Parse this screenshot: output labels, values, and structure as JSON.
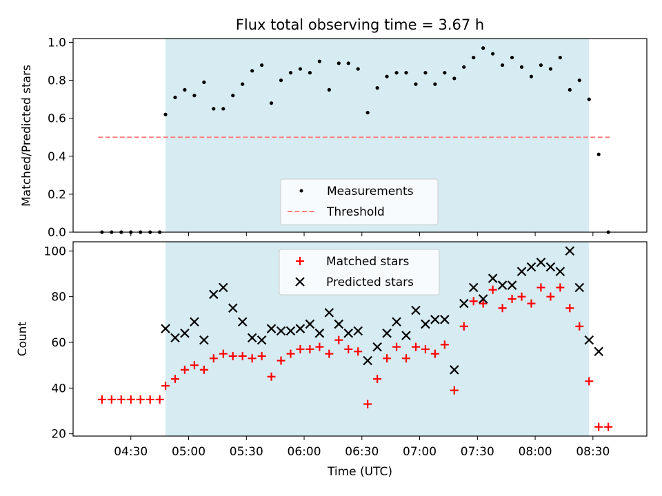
{
  "chart_data": [
    {
      "type": "scatter",
      "title": "Flux total observing time = 3.67 h",
      "xlabel": "",
      "ylabel": "Matched/Predicted stars",
      "ylim": [
        0,
        1.02
      ],
      "xlim": [
        "04:00",
        "08:58"
      ],
      "yticks": [
        "0.0",
        "0.2",
        "0.4",
        "0.6",
        "0.8",
        "1.0"
      ],
      "shaded_interval": [
        "04:48",
        "08:28"
      ],
      "shade_color": "#add8e6",
      "legend_position": "lower center",
      "series": [
        {
          "name": "Measurements",
          "marker": "dot",
          "color": "#000000",
          "x": [
            "04:15",
            "04:20",
            "04:25",
            "04:30",
            "04:35",
            "04:40",
            "04:45",
            "04:48",
            "04:53",
            "04:58",
            "05:03",
            "05:08",
            "05:13",
            "05:18",
            "05:23",
            "05:28",
            "05:33",
            "05:38",
            "05:43",
            "05:48",
            "05:53",
            "05:58",
            "06:03",
            "06:08",
            "06:13",
            "06:18",
            "06:23",
            "06:28",
            "06:33",
            "06:38",
            "06:43",
            "06:48",
            "06:53",
            "06:58",
            "07:03",
            "07:08",
            "07:13",
            "07:18",
            "07:23",
            "07:28",
            "07:33",
            "07:38",
            "07:43",
            "07:48",
            "07:53",
            "07:58",
            "08:03",
            "08:08",
            "08:13",
            "08:18",
            "08:23",
            "08:28",
            "08:33",
            "08:38"
          ],
          "values": [
            0,
            0,
            0,
            0,
            0,
            0,
            0,
            0.62,
            0.71,
            0.75,
            0.72,
            0.79,
            0.65,
            0.65,
            0.72,
            0.78,
            0.85,
            0.88,
            0.68,
            0.8,
            0.84,
            0.86,
            0.84,
            0.9,
            0.75,
            0.89,
            0.89,
            0.86,
            0.63,
            0.76,
            0.82,
            0.84,
            0.84,
            0.78,
            0.84,
            0.78,
            0.84,
            0.81,
            0.87,
            0.92,
            0.97,
            0.94,
            0.88,
            0.92,
            0.87,
            0.82,
            0.88,
            0.86,
            0.92,
            0.75,
            0.8,
            0.7,
            0.41,
            0
          ]
        },
        {
          "name": "Threshold",
          "style": "dashed",
          "color": "#ff8080",
          "x": [
            "04:13",
            "08:40"
          ],
          "values": [
            0.5,
            0.5
          ]
        }
      ]
    },
    {
      "type": "scatter",
      "title": "",
      "xlabel": "Time (UTC)",
      "ylabel": "Count",
      "ylim": [
        19,
        104
      ],
      "xlim": [
        "04:00",
        "08:58"
      ],
      "xticks": [
        "04:30",
        "05:00",
        "05:30",
        "06:00",
        "06:30",
        "07:00",
        "07:30",
        "08:00",
        "08:30"
      ],
      "yticks": [
        "20",
        "40",
        "60",
        "80",
        "100"
      ],
      "shaded_interval": [
        "04:48",
        "08:28"
      ],
      "shade_color": "#add8e6",
      "legend_position": "upper center",
      "series": [
        {
          "name": "Matched stars",
          "marker": "plus",
          "color": "#ff0000",
          "x": [
            "04:15",
            "04:20",
            "04:25",
            "04:30",
            "04:35",
            "04:40",
            "04:45",
            "04:48",
            "04:53",
            "04:58",
            "05:03",
            "05:08",
            "05:13",
            "05:18",
            "05:23",
            "05:28",
            "05:33",
            "05:38",
            "05:43",
            "05:48",
            "05:53",
            "05:58",
            "06:03",
            "06:08",
            "06:13",
            "06:18",
            "06:23",
            "06:28",
            "06:33",
            "06:38",
            "06:43",
            "06:48",
            "06:53",
            "06:58",
            "07:03",
            "07:08",
            "07:13",
            "07:18",
            "07:23",
            "07:28",
            "07:33",
            "07:38",
            "07:43",
            "07:48",
            "07:53",
            "07:58",
            "08:03",
            "08:08",
            "08:13",
            "08:18",
            "08:23",
            "08:28",
            "08:33",
            "08:38"
          ],
          "values": [
            35,
            35,
            35,
            35,
            35,
            35,
            35,
            41,
            44,
            48,
            50,
            48,
            53,
            55,
            54,
            54,
            53,
            54,
            45,
            52,
            55,
            57,
            57,
            58,
            55,
            61,
            57,
            56,
            33,
            44,
            53,
            58,
            53,
            58,
            57,
            55,
            59,
            39,
            67,
            78,
            77,
            83,
            75,
            79,
            80,
            77,
            84,
            80,
            84,
            75,
            67,
            43,
            23,
            23
          ]
        },
        {
          "name": "Predicted stars",
          "marker": "x",
          "color": "#000000",
          "x": [
            "04:48",
            "04:53",
            "04:58",
            "05:03",
            "05:08",
            "05:13",
            "05:18",
            "05:23",
            "05:28",
            "05:33",
            "05:38",
            "05:43",
            "05:48",
            "05:53",
            "05:58",
            "06:03",
            "06:08",
            "06:13",
            "06:18",
            "06:23",
            "06:28",
            "06:33",
            "06:38",
            "06:43",
            "06:48",
            "06:53",
            "06:58",
            "07:03",
            "07:08",
            "07:13",
            "07:18",
            "07:23",
            "07:28",
            "07:33",
            "07:38",
            "07:43",
            "07:48",
            "07:53",
            "07:58",
            "08:03",
            "08:08",
            "08:13",
            "08:18",
            "08:23",
            "08:28",
            "08:33"
          ],
          "values": [
            66,
            62,
            64,
            69,
            61,
            81,
            84,
            75,
            69,
            62,
            61,
            66,
            65,
            65,
            66,
            68,
            64,
            73,
            68,
            64,
            65,
            52,
            58,
            64,
            69,
            63,
            74,
            68,
            70,
            70,
            48,
            77,
            84,
            79,
            88,
            85,
            85,
            91,
            93,
            95,
            93,
            91,
            100,
            84,
            61,
            56
          ]
        }
      ]
    }
  ]
}
